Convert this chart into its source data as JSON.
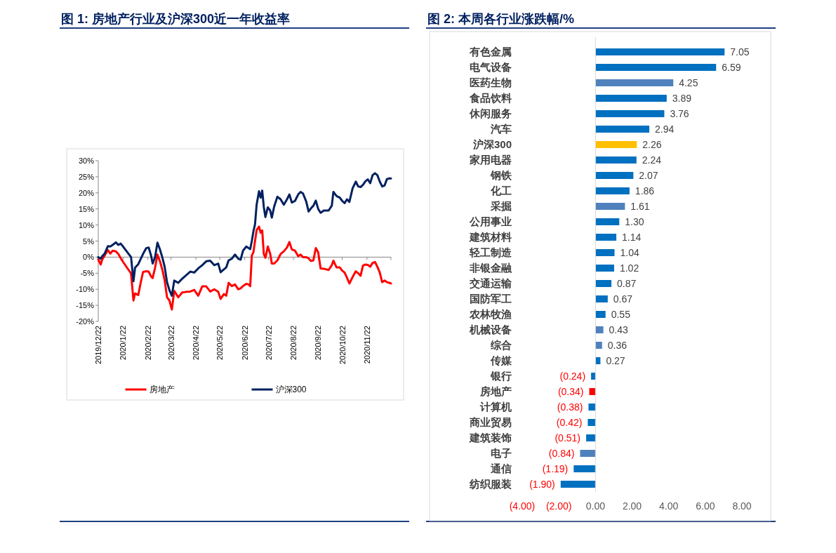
{
  "chart_data": [
    {
      "type": "line",
      "title": "图 1:  房地产行业及沪深300近一年收益率",
      "legend": "bottom",
      "x": [
        "2019-12-22",
        "2019-12-25",
        "2019-12-27",
        "2019-12-30",
        "2020-01-03",
        "2020-01-06",
        "2020-01-09",
        "2020-01-13",
        "2020-01-16",
        "2020-01-19",
        "2020-01-22",
        "2020-02-01",
        "2020-02-04",
        "2020-02-06",
        "2020-02-10",
        "2020-02-13",
        "2020-02-16",
        "2020-02-20",
        "2020-02-23",
        "2020-02-26",
        "2020-02-28",
        "2020-03-02",
        "2020-03-05",
        "2020-03-08",
        "2020-03-11",
        "2020-03-14",
        "2020-03-17",
        "2020-03-20",
        "2020-03-23",
        "2020-03-26",
        "2020-03-31",
        "2020-04-05",
        "2020-04-10",
        "2020-04-15",
        "2020-04-20",
        "2020-04-25",
        "2020-04-30",
        "2020-05-05",
        "2020-05-10",
        "2020-05-15",
        "2020-05-20",
        "2020-05-23",
        "2020-05-27",
        "2020-05-30",
        "2020-06-02",
        "2020-06-06",
        "2020-06-10",
        "2020-06-14",
        "2020-06-17",
        "2020-06-20",
        "2020-06-24",
        "2020-06-27",
        "2020-06-29",
        "2020-07-01",
        "2020-07-03",
        "2020-07-05",
        "2020-07-07",
        "2020-07-10",
        "2020-07-12",
        "2020-07-14",
        "2020-07-16",
        "2020-07-18",
        "2020-07-21",
        "2020-07-24",
        "2020-07-26",
        "2020-07-29",
        "2020-08-02",
        "2020-08-06",
        "2020-08-10",
        "2020-08-14",
        "2020-08-17",
        "2020-08-20",
        "2020-08-24",
        "2020-08-28",
        "2020-08-31",
        "2020-09-03",
        "2020-09-07",
        "2020-09-10",
        "2020-09-13",
        "2020-09-16",
        "2020-09-19",
        "2020-09-22",
        "2020-09-25",
        "2020-09-29",
        "2020-10-05",
        "2020-10-09",
        "2020-10-11",
        "2020-10-15",
        "2020-10-19",
        "2020-10-22",
        "2020-10-25",
        "2020-10-28",
        "2020-10-31",
        "2020-11-04",
        "2020-11-08",
        "2020-11-11",
        "2020-11-14",
        "2020-11-17",
        "2020-11-20",
        "2020-11-23",
        "2020-11-26",
        "2020-11-29",
        "2020-12-02",
        "2020-12-05",
        "2020-12-08",
        "2020-12-11",
        "2020-12-14",
        "2020-12-17",
        "2020-12-20",
        "2020-12-22"
      ],
      "series": [
        {
          "name": "房地产",
          "color": "#ff0000",
          "values": [
            -0.7,
            -2.3,
            -0.7,
            0.5,
            2.2,
            1.1,
            2.0,
            1.8,
            1.0,
            -0.3,
            -1.5,
            -5.1,
            -13.5,
            -11.3,
            -11.8,
            -8.0,
            -4.6,
            -4.4,
            -4.5,
            -6.0,
            -6.5,
            -3.3,
            0.8,
            -1.2,
            -3.8,
            -7.2,
            -12.5,
            -13.5,
            -16.3,
            -10.5,
            -12.5,
            -11.0,
            -10.8,
            -10.7,
            -10.2,
            -12.0,
            -9.1,
            -9.1,
            -10.7,
            -10.0,
            -10.8,
            -13.0,
            -11.5,
            -12.0,
            -8.0,
            -9.0,
            -8.5,
            -10.0,
            -9.7,
            -9.0,
            -8.3,
            -8.5,
            -9.0,
            0.5,
            1.5,
            5.0,
            8.4,
            9.5,
            7.6,
            8.3,
            1.0,
            -0.2,
            3.3,
            1.0,
            -2.0,
            -2.0,
            -1.0,
            1.0,
            1.8,
            3.0,
            4.7,
            2.4,
            2.0,
            0.3,
            0.8,
            0,
            0,
            -0.4,
            -1.2,
            -1.0,
            2.8,
            1.5,
            -3.5,
            -3.6,
            -4.0,
            -2.5,
            -1.1,
            -3.2,
            -3.2,
            -4.2,
            -4.8,
            -6.4,
            -8.2,
            -6.2,
            -4.4,
            -5.0,
            -5.8,
            -2.6,
            -2.3,
            -2.4,
            -3.0,
            -1.8,
            -1.5,
            -3.0,
            -4.8,
            -7.8,
            -7.3,
            -7.8,
            -8.0,
            -8.2
          ]
        },
        {
          "name": "沪深300",
          "color": "#002060",
          "values": [
            0,
            -0.5,
            0.3,
            1.1,
            3.4,
            3.3,
            3.8,
            4.6,
            3.8,
            4.2,
            3.3,
            0,
            -7.5,
            -3.3,
            -2.2,
            -0.6,
            1.0,
            2.8,
            3.0,
            0.5,
            -2.0,
            0,
            4.5,
            2.5,
            0,
            -3.0,
            -7.8,
            -10.3,
            -12.0,
            -7.3,
            -8.0,
            -6.7,
            -5.6,
            -4.5,
            -4.8,
            -3.5,
            -2.5,
            -1.3,
            -1.1,
            -2.5,
            -2.0,
            -4.7,
            -3.8,
            -3.2,
            -1.0,
            -0.5,
            0.8,
            -0.5,
            -0.8,
            2.0,
            3.3,
            2.8,
            2.5,
            5.0,
            8.0,
            10.2,
            16.3,
            20.5,
            18.5,
            20.7,
            15.6,
            12.5,
            15.5,
            14.5,
            12.3,
            15.8,
            18.8,
            18.0,
            16.3,
            18.0,
            19.5,
            17.0,
            17.5,
            19.5,
            20.3,
            19.8,
            17.3,
            14.2,
            15.2,
            16.0,
            17.6,
            15.0,
            13.8,
            14.5,
            14.5,
            16.0,
            20.3,
            19.0,
            18.5,
            17.5,
            16.8,
            18.0,
            17.2,
            21.4,
            23.5,
            22.0,
            21.8,
            22.5,
            23.6,
            24.2,
            23.0,
            25.5,
            26.1,
            25.5,
            23.5,
            22.0,
            22.3,
            24.3,
            24.5,
            24.5
          ]
        }
      ],
      "xlim": [
        "2019-12-22",
        "2020-12-22"
      ],
      "xticks": [
        {
          "value": "2019-12-22",
          "label": "2019/12/22"
        },
        {
          "value": "2020-01-22",
          "label": "2020/1/22"
        },
        {
          "value": "2020-02-22",
          "label": "2020/2/22"
        },
        {
          "value": "2020-03-22",
          "label": "2020/3/22"
        },
        {
          "value": "2020-04-22",
          "label": "2020/4/22"
        },
        {
          "value": "2020-05-22",
          "label": "2020/5/22"
        },
        {
          "value": "2020-06-22",
          "label": "2020/6/22"
        },
        {
          "value": "2020-07-22",
          "label": "2020/7/22"
        },
        {
          "value": "2020-08-22",
          "label": "2020/8/22"
        },
        {
          "value": "2020-09-22",
          "label": "2020/9/22"
        },
        {
          "value": "2020-10-22",
          "label": "2020/10/22"
        },
        {
          "value": "2020-11-22",
          "label": "2020/11/22"
        },
        {
          "value": "2020-12-22",
          "label": null
        }
      ],
      "ylim": [
        -20,
        30
      ],
      "yticks": [
        {
          "value": 30,
          "label": "30%"
        },
        {
          "value": 25,
          "label": "25%"
        },
        {
          "value": 20,
          "label": "20%"
        },
        {
          "value": 15,
          "label": "15%"
        },
        {
          "value": 10,
          "label": "10%"
        },
        {
          "value": 5,
          "label": "5%"
        },
        {
          "value": 0,
          "label": "0%"
        },
        {
          "value": -5,
          "label": "-5%"
        },
        {
          "value": -10,
          "label": "-10%"
        },
        {
          "value": -15,
          "label": "-15%"
        },
        {
          "value": -20,
          "label": "-20%"
        }
      ]
    },
    {
      "type": "bar",
      "orientation": "horizontal",
      "title": "图 2:  本周各行业涨跌幅/%",
      "categories": [
        "有色金属",
        "电气设备",
        "医药生物",
        "食品饮料",
        "休闲服务",
        "汽车",
        "沪深300",
        "家用电器",
        "钢铁",
        "化工",
        "采掘",
        "公用事业",
        "建筑材料",
        "轻工制造",
        "非银金融",
        "交通运输",
        "国防军工",
        "农林牧渔",
        "机械设备",
        "综合",
        "传媒",
        "银行",
        "房地产",
        "计算机",
        "商业贸易",
        "建筑装饰",
        "电子",
        "通信",
        "纺织服装"
      ],
      "values": [
        7.05,
        6.59,
        4.25,
        3.89,
        3.76,
        2.94,
        2.26,
        2.24,
        2.07,
        1.86,
        1.61,
        1.3,
        1.14,
        1.04,
        1.02,
        0.87,
        0.67,
        0.55,
        0.43,
        0.36,
        0.27,
        -0.24,
        -0.34,
        -0.38,
        -0.42,
        -0.51,
        -0.84,
        -1.19,
        -1.9
      ],
      "value_labels": [
        "7.05",
        "6.59",
        "4.25",
        "3.89",
        "3.76",
        "2.94",
        "2.26",
        "2.24",
        "2.07",
        "1.86",
        "1.61",
        "1.30",
        "1.14",
        "1.04",
        "1.02",
        "0.87",
        "0.67",
        "0.55",
        "0.43",
        "0.36",
        "0.27",
        "(0.24)",
        "(0.34)",
        "(0.38)",
        "(0.42)",
        "(0.51)",
        "(0.84)",
        "(1.19)",
        "(1.90)"
      ],
      "colors": [
        "#0070c0",
        "#0070c0",
        "#4f81bd",
        "#0070c0",
        "#0070c0",
        "#0070c0",
        "#ffc000",
        "#0070c0",
        "#0070c0",
        "#0070c0",
        "#4f81bd",
        "#0070c0",
        "#0070c0",
        "#0070c0",
        "#0070c0",
        "#0070c0",
        "#0070c0",
        "#0070c0",
        "#4f81bd",
        "#4f81bd",
        "#0070c0",
        "#0070c0",
        "#ff0000",
        "#0070c0",
        "#0070c0",
        "#0070c0",
        "#4f81bd",
        "#0070c0",
        "#0070c0"
      ],
      "xlim": [
        -4,
        8
      ],
      "xticks": [
        {
          "value": -4,
          "label": "(4.00)"
        },
        {
          "value": -2,
          "label": "(2.00)"
        },
        {
          "value": 0,
          "label": "0.00"
        },
        {
          "value": 2,
          "label": "2.00"
        },
        {
          "value": 4,
          "label": "4.00"
        },
        {
          "value": 6,
          "label": "6.00"
        },
        {
          "value": 8,
          "label": "8.00"
        }
      ]
    }
  ]
}
